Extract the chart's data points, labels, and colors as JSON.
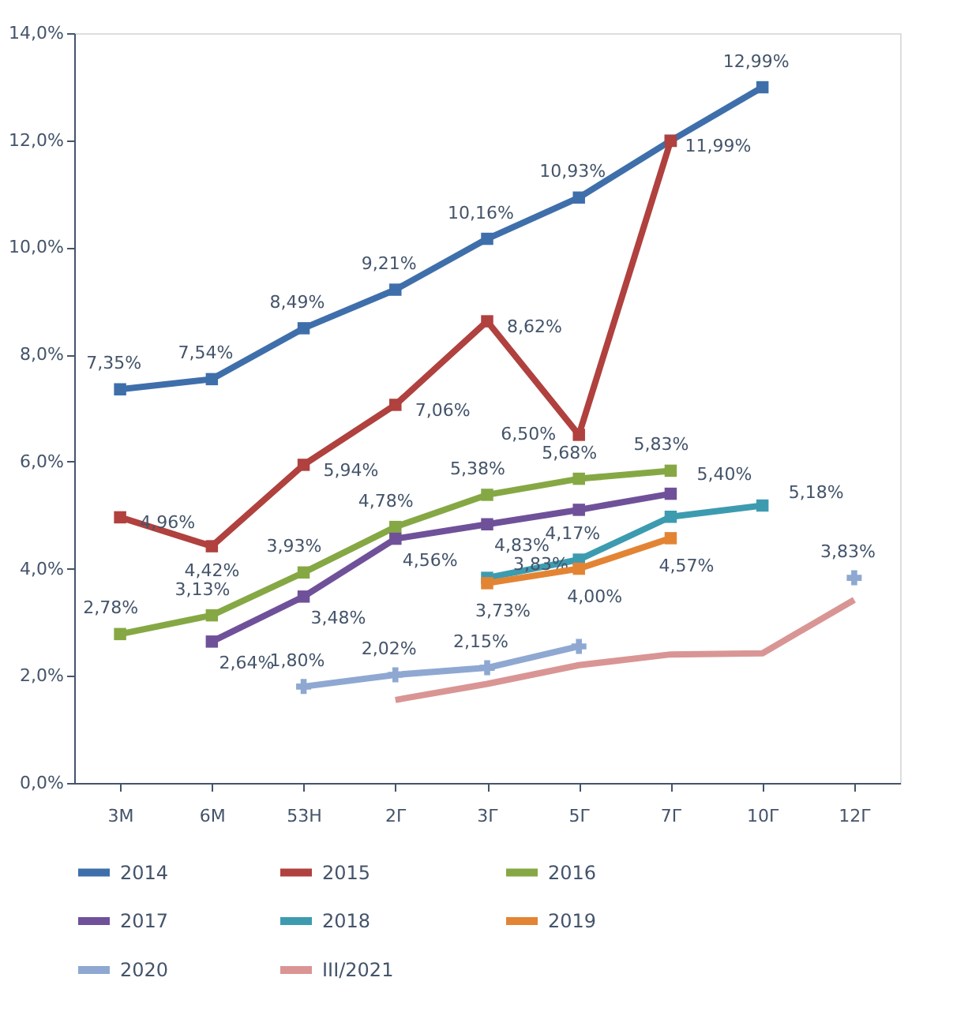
{
  "chart_data": {
    "type": "line",
    "categories": [
      "3М",
      "6М",
      "53Н",
      "2Г",
      "3Г",
      "5Г",
      "7Г",
      "10Г",
      "12Г"
    ],
    "ylim": [
      0,
      14
    ],
    "yticks": [
      {
        "value": 0,
        "label": "0,0%"
      },
      {
        "value": 2,
        "label": "2,0%"
      },
      {
        "value": 4,
        "label": "4,0%"
      },
      {
        "value": 6,
        "label": "6,0%"
      },
      {
        "value": 8,
        "label": "8,0%"
      },
      {
        "value": 10,
        "label": "10,0%"
      },
      {
        "value": 12,
        "label": "12,0%"
      },
      {
        "value": 14,
        "label": "14,0%"
      }
    ],
    "grid": false,
    "legend": "bottom",
    "line_style": "solid",
    "series": [
      {
        "name": "2014",
        "color": "#3f6fab",
        "marker": "square",
        "values": [
          7.35,
          7.54,
          8.49,
          9.21,
          10.16,
          10.93,
          11.99,
          12.99,
          null
        ],
        "value_labels": [
          "7,35%",
          "7,54%",
          "8,49%",
          "9,21%",
          "10,16%",
          "10,93%",
          null,
          "12,99%",
          null
        ]
      },
      {
        "name": "2015",
        "color": "#b0413e",
        "marker": "square",
        "values": [
          4.96,
          4.42,
          5.94,
          7.06,
          8.62,
          6.5,
          11.99,
          null,
          null
        ],
        "value_labels": [
          "4,96%",
          "4,42%",
          "5,94%",
          "7,06%",
          "8,62%",
          "6,50%",
          "11,99%",
          null,
          null
        ]
      },
      {
        "name": "2016",
        "color": "#86a844",
        "marker": "square",
        "values": [
          2.78,
          3.13,
          3.93,
          4.78,
          5.38,
          5.68,
          5.83,
          null,
          null
        ],
        "value_labels": [
          "2,78%",
          "3,13%",
          "3,93%",
          "4,78%",
          "5,38%",
          "5,68%",
          "5,83%",
          null,
          null
        ]
      },
      {
        "name": "2017",
        "color": "#6f519a",
        "marker": "square",
        "values": [
          null,
          2.64,
          3.48,
          4.56,
          4.83,
          5.1,
          5.4,
          null,
          null
        ],
        "value_labels": [
          null,
          "2,64%",
          "3,48%",
          "4,56%",
          "4,83%",
          null,
          "5,40%",
          null,
          null
        ]
      },
      {
        "name": "2018",
        "color": "#3d9bb0",
        "marker": "square",
        "values": [
          null,
          null,
          null,
          null,
          3.83,
          4.17,
          4.97,
          5.18,
          null
        ],
        "value_labels": [
          null,
          null,
          null,
          null,
          "3,83%",
          "4,17%",
          null,
          "5,18%",
          null
        ]
      },
      {
        "name": "2019",
        "color": "#e38434",
        "marker": "square",
        "values": [
          null,
          null,
          null,
          null,
          3.73,
          4.0,
          4.57,
          null,
          null
        ],
        "value_labels": [
          null,
          null,
          null,
          null,
          "3,73%",
          "4,00%",
          "4,57%",
          null,
          null
        ]
      },
      {
        "name": "2020",
        "color": "#8ea8d2",
        "marker": "cross",
        "values": [
          null,
          null,
          1.8,
          2.02,
          2.15,
          2.55,
          null,
          null,
          3.83
        ],
        "value_labels": [
          null,
          null,
          "1,80%",
          "2,02%",
          "2,15%",
          null,
          null,
          null,
          "3,83%"
        ]
      },
      {
        "name": "III/2021",
        "color": "#d99594",
        "marker": "none",
        "values": [
          null,
          null,
          null,
          1.55,
          1.85,
          2.2,
          2.4,
          2.42,
          3.42
        ]
      }
    ]
  }
}
